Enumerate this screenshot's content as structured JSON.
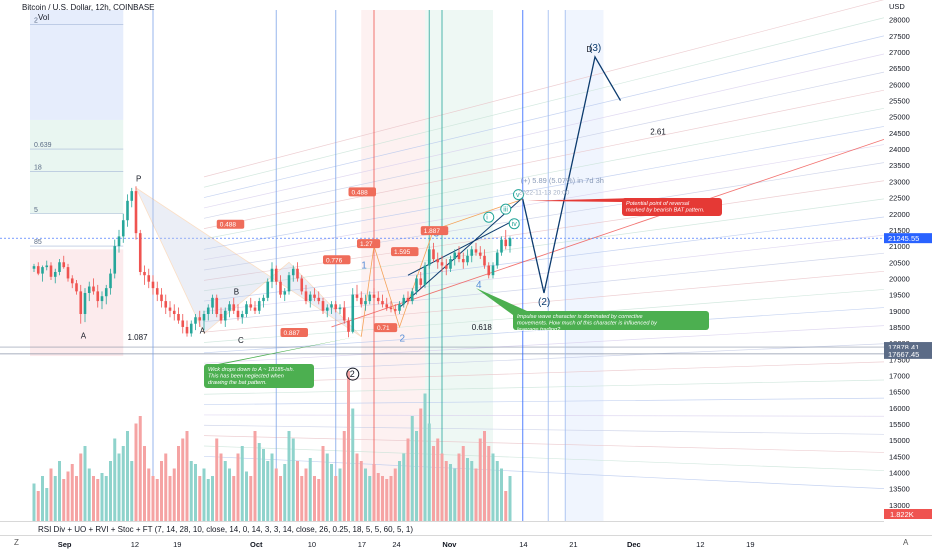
{
  "header": {
    "symbol_title": "Bitcoin / U.S. Dollar, 12h, COINBASE",
    "volume_label": "Vol",
    "indicator_label": "RSI Div + UO + RVI + Stoc + FT (7, 14, 28, 10, close, 14, 0, 14, 3, 3, 14, close, 26, 0.25, 18, 5, 5, 60, 5, 1)",
    "currency": "USD",
    "z_label": "Z",
    "auto_label": "A"
  },
  "colors": {
    "up": "#26a69a",
    "down": "#ef5350",
    "vol_up": "#8fd3cc",
    "vol_down": "#f5a3a3",
    "fib_blue": "#2962ff",
    "fib_red": "#f23645",
    "fib_green": "#089981",
    "wave_navy": "#0c3b6e",
    "last_price_bg": "#2962ff",
    "annotation_red": "#e53935",
    "annotation_green": "#4caf50"
  },
  "chart_data": {
    "type": "candlestick",
    "title": "Bitcoin / U.S. Dollar, 12h, COINBASE",
    "ylabel": "USD",
    "ylim": [
      12500,
      28300
    ],
    "y_ticks": [
      13000,
      13500,
      14000,
      14500,
      15000,
      15500,
      16000,
      16500,
      17000,
      17500,
      18000,
      18500,
      19000,
      19500,
      20000,
      20500,
      21000,
      21500,
      22000,
      22500,
      23000,
      23500,
      24000,
      24500,
      25000,
      25500,
      26000,
      26500,
      27000,
      27500,
      28000
    ],
    "x_ticks": [
      "Sep",
      "12",
      "19",
      "Oct",
      "10",
      "17",
      "24",
      "Nov",
      "14",
      "21",
      "Dec",
      "12",
      "19"
    ],
    "price_badges": [
      {
        "value": 21245.55,
        "text": "21245.55",
        "bg": "#2962ff"
      },
      {
        "value": 17878.41,
        "text": "17878.41",
        "bg": "#5b6b86"
      },
      {
        "value": 17667.45,
        "text": "17667.45",
        "bg": "#5b6b86"
      }
    ],
    "volume_badge": "1.822K",
    "ohlc_12h": [
      [
        20300,
        20450,
        20200,
        20380
      ],
      [
        20380,
        20500,
        20100,
        20150
      ],
      [
        20150,
        20400,
        19900,
        20350
      ],
      [
        20350,
        20550,
        20250,
        20400
      ],
      [
        20400,
        20500,
        19950,
        20050
      ],
      [
        20050,
        20300,
        19850,
        20200
      ],
      [
        20200,
        20600,
        20100,
        20500
      ],
      [
        20500,
        20700,
        20300,
        20350
      ],
      [
        20350,
        20450,
        19900,
        20000
      ],
      [
        20000,
        20100,
        19700,
        19850
      ],
      [
        19850,
        19950,
        19500,
        19600
      ],
      [
        19600,
        19800,
        18600,
        18900
      ],
      [
        18900,
        19700,
        18650,
        19550
      ],
      [
        19550,
        19900,
        19300,
        19750
      ],
      [
        19750,
        20000,
        19500,
        19600
      ],
      [
        19600,
        19800,
        19100,
        19300
      ],
      [
        19300,
        19600,
        19050,
        19450
      ],
      [
        19450,
        19800,
        19200,
        19700
      ],
      [
        19700,
        20300,
        19500,
        20150
      ],
      [
        20150,
        21200,
        20000,
        21000
      ],
      [
        21000,
        21500,
        20800,
        21300
      ],
      [
        21300,
        22000,
        21100,
        21800
      ],
      [
        21800,
        22600,
        21600,
        22400
      ],
      [
        22400,
        22800,
        22200,
        22700
      ],
      [
        22700,
        22850,
        21200,
        21400
      ],
      [
        21400,
        21500,
        20100,
        20200
      ],
      [
        20200,
        20400,
        19800,
        20100
      ],
      [
        20100,
        20300,
        19700,
        19900
      ],
      [
        19900,
        20100,
        19500,
        19700
      ],
      [
        19700,
        19900,
        19300,
        19500
      ],
      [
        19500,
        19700,
        19100,
        19300
      ],
      [
        19300,
        19500,
        18900,
        19100
      ],
      [
        19100,
        19300,
        18800,
        19000
      ],
      [
        19000,
        19200,
        18700,
        18900
      ],
      [
        18900,
        19100,
        18600,
        18700
      ],
      [
        18700,
        18900,
        18300,
        18500
      ],
      [
        18500,
        18700,
        18200,
        18300
      ],
      [
        18300,
        18700,
        18200,
        18600
      ],
      [
        18600,
        18900,
        18400,
        18800
      ],
      [
        18800,
        19000,
        18500,
        18700
      ],
      [
        18700,
        19000,
        18400,
        18900
      ],
      [
        18900,
        19200,
        18700,
        19100
      ],
      [
        19100,
        19500,
        18900,
        19400
      ],
      [
        19400,
        19500,
        18800,
        18900
      ],
      [
        18900,
        19100,
        18600,
        18700
      ],
      [
        18700,
        19100,
        18500,
        19000
      ],
      [
        19000,
        19300,
        18800,
        19200
      ],
      [
        19200,
        19400,
        18900,
        19000
      ],
      [
        19000,
        19200,
        18700,
        18800
      ],
      [
        18800,
        19000,
        18600,
        18900
      ],
      [
        18900,
        19300,
        18800,
        19200
      ],
      [
        19200,
        19400,
        19000,
        19100
      ],
      [
        19100,
        19300,
        18900,
        19000
      ],
      [
        19000,
        19400,
        18900,
        19300
      ],
      [
        19300,
        19500,
        19100,
        19400
      ],
      [
        19400,
        20000,
        19300,
        19900
      ],
      [
        19900,
        20500,
        19700,
        20300
      ],
      [
        20300,
        20400,
        19800,
        19900
      ],
      [
        19900,
        20100,
        19400,
        19500
      ],
      [
        19500,
        19700,
        19300,
        19600
      ],
      [
        19600,
        20200,
        19500,
        20100
      ],
      [
        20100,
        20400,
        19900,
        20300
      ],
      [
        20300,
        20500,
        19900,
        20000
      ],
      [
        20000,
        20100,
        19500,
        19600
      ],
      [
        19600,
        19800,
        19200,
        19300
      ],
      [
        19300,
        19600,
        19100,
        19500
      ],
      [
        19500,
        19700,
        19300,
        19400
      ],
      [
        19400,
        19600,
        19200,
        19300
      ],
      [
        19300,
        19400,
        18900,
        19000
      ],
      [
        19000,
        19200,
        18800,
        19100
      ],
      [
        19100,
        19300,
        18900,
        19200
      ],
      [
        19200,
        19300,
        18950,
        19050
      ],
      [
        19050,
        19200,
        18900,
        19100
      ],
      [
        19100,
        19300,
        18600,
        18700
      ],
      [
        18700,
        18800,
        18180,
        18350
      ],
      [
        18350,
        19700,
        18300,
        19500
      ],
      [
        19500,
        19800,
        19300,
        19400
      ],
      [
        19400,
        19600,
        19100,
        19200
      ],
      [
        19200,
        19500,
        19000,
        19300
      ],
      [
        19300,
        19600,
        19200,
        19500
      ],
      [
        19500,
        19700,
        19300,
        19400
      ],
      [
        19400,
        19600,
        19200,
        19300
      ],
      [
        19300,
        19500,
        19100,
        19200
      ],
      [
        19200,
        19400,
        19000,
        19100
      ],
      [
        19100,
        19300,
        18950,
        19050
      ],
      [
        19050,
        19200,
        18900,
        19000
      ],
      [
        19000,
        19300,
        18900,
        19200
      ],
      [
        19200,
        19500,
        19100,
        19400
      ],
      [
        19400,
        19600,
        19200,
        19300
      ],
      [
        19300,
        19700,
        19200,
        19600
      ],
      [
        19600,
        20100,
        19500,
        20000
      ],
      [
        20000,
        20200,
        19700,
        19800
      ],
      [
        19800,
        20500,
        19700,
        20400
      ],
      [
        20400,
        21000,
        20300,
        20900
      ],
      [
        20900,
        21100,
        20500,
        20600
      ],
      [
        20600,
        20800,
        20300,
        20500
      ],
      [
        20500,
        20700,
        20200,
        20400
      ],
      [
        20400,
        20600,
        20100,
        20300
      ],
      [
        20300,
        20700,
        20200,
        20600
      ],
      [
        20600,
        20900,
        20400,
        20800
      ],
      [
        20800,
        21000,
        20500,
        20600
      ],
      [
        20600,
        20800,
        20300,
        20500
      ],
      [
        20500,
        20900,
        20400,
        20700
      ],
      [
        20700,
        21000,
        20500,
        20900
      ],
      [
        20900,
        21100,
        20700,
        20800
      ],
      [
        20800,
        21000,
        20600,
        20700
      ],
      [
        20700,
        20900,
        20300,
        20400
      ],
      [
        20400,
        20500,
        20000,
        20100
      ],
      [
        20100,
        20500,
        20000,
        20400
      ],
      [
        20400,
        20900,
        20300,
        20800
      ],
      [
        20800,
        21300,
        20700,
        21200
      ],
      [
        21200,
        21500,
        20900,
        21000
      ],
      [
        21000,
        21300,
        20800,
        21245.55
      ]
    ],
    "volumes_rel": [
      0.25,
      0.2,
      0.3,
      0.22,
      0.35,
      0.3,
      0.4,
      0.28,
      0.33,
      0.38,
      0.3,
      0.45,
      0.5,
      0.35,
      0.3,
      0.28,
      0.32,
      0.3,
      0.4,
      0.55,
      0.45,
      0.5,
      0.6,
      0.4,
      0.65,
      0.7,
      0.5,
      0.35,
      0.3,
      0.28,
      0.4,
      0.45,
      0.3,
      0.35,
      0.5,
      0.55,
      0.6,
      0.4,
      0.38,
      0.3,
      0.35,
      0.28,
      0.3,
      0.55,
      0.45,
      0.4,
      0.35,
      0.3,
      0.45,
      0.5,
      0.33,
      0.3,
      0.6,
      0.52,
      0.48,
      0.4,
      0.45,
      0.35,
      0.3,
      0.38,
      0.6,
      0.55,
      0.4,
      0.3,
      0.35,
      0.42,
      0.3,
      0.28,
      0.5,
      0.45,
      0.38,
      0.3,
      0.35,
      0.6,
      1.0,
      0.75,
      0.45,
      0.4,
      0.35,
      0.3,
      0.38,
      0.32,
      0.3,
      0.28,
      0.3,
      0.35,
      0.4,
      0.45,
      0.55,
      0.7,
      0.6,
      0.75,
      0.85,
      0.65,
      0.5,
      0.55,
      0.45,
      0.4,
      0.38,
      0.35,
      0.45,
      0.5,
      0.42,
      0.4,
      0.35,
      0.55,
      0.6,
      0.5,
      0.45,
      0.4,
      0.35,
      0.2
    ],
    "wave_projection": [
      {
        "label": "",
        "t": 115,
        "price": 22450
      },
      {
        "label": "(2)",
        "t": 120,
        "price": 19550
      },
      {
        "label": "(3)",
        "t": 132,
        "price": 26850
      },
      {
        "label": "",
        "t": 138,
        "price": 25500
      }
    ],
    "vertical_lines_t": [
      28,
      57,
      71,
      80,
      93,
      96,
      115,
      121,
      125
    ],
    "fib_levels": [
      {
        "label": "0.639",
        "price": 24000
      },
      {
        "label": "18",
        "price": 23300
      },
      {
        "label": "5",
        "price": 22000
      },
      {
        "label": "85",
        "price": 21000
      },
      {
        "label": "2",
        "price": 27850
      }
    ],
    "pattern_labels": [
      {
        "text": "P",
        "t": 24,
        "price": 23000,
        "style": "dark"
      },
      {
        "text": "A",
        "t": 11,
        "price": 18150,
        "style": "dark"
      },
      {
        "text": "A",
        "t": 39,
        "price": 18300,
        "style": "dark"
      },
      {
        "text": "B",
        "t": 47,
        "price": 19500,
        "style": "dark"
      },
      {
        "text": "C",
        "t": 48,
        "price": 18000,
        "style": "dark"
      },
      {
        "text": "1.087",
        "t": 22,
        "price": 18100,
        "style": "dark"
      },
      {
        "text": "2.61",
        "t": 145,
        "price": 24450,
        "style": "dark"
      },
      {
        "text": "0.618",
        "t": 103,
        "price": 18400,
        "style": "dark"
      },
      {
        "text": "1",
        "t": 77,
        "price": 20300,
        "style": "blue"
      },
      {
        "text": "2",
        "t": 86,
        "price": 18050,
        "style": "blue"
      },
      {
        "text": "3",
        "t": 94,
        "price": 21300,
        "style": "blue"
      },
      {
        "text": "4",
        "t": 104,
        "price": 19700,
        "style": "blue"
      },
      {
        "text": "D",
        "t": 130,
        "price": 27000,
        "style": "dark"
      },
      {
        "text": "2",
        "t": 75,
        "price": 16950,
        "style": "circle"
      },
      {
        "text": "i",
        "t": 107,
        "price": 21800,
        "style": "circle-green"
      },
      {
        "text": "iii",
        "t": 111,
        "price": 22050,
        "style": "circle-green"
      },
      {
        "text": "iv",
        "t": 113,
        "price": 21600,
        "style": "circle-green"
      },
      {
        "text": "v",
        "t": 114,
        "price": 22500,
        "style": "circle-green"
      }
    ],
    "orange_tags": [
      {
        "text": "0.488",
        "t": 43,
        "price": 21600
      },
      {
        "text": "0.488",
        "t": 74,
        "price": 22600
      },
      {
        "text": "0.776",
        "t": 68,
        "price": 20500
      },
      {
        "text": "1.27",
        "t": 76,
        "price": 21000
      },
      {
        "text": "1.595",
        "t": 84,
        "price": 20750
      },
      {
        "text": "0.887",
        "t": 58,
        "price": 18250
      },
      {
        "text": "0.71",
        "t": 80,
        "price": 18400
      },
      {
        "text": "1.887",
        "t": 91,
        "price": 21400
      }
    ],
    "projection_text": "(+) 5.89 (5.07%) in 7d 3h",
    "projection_subtext": "2022-11-13 20:00",
    "annotations": [
      {
        "text": "Potential point of reversal marked by bearish BAT pattern.",
        "color": "red"
      },
      {
        "text": "Impulse wave character is dominated by corrective movements. How much of this character is influenced by leverage trading?",
        "color": "green"
      },
      {
        "text": "Wick drops down to A ~ 18185-ish. This has been neglected when drawing the bat pattern.",
        "color": "green"
      }
    ]
  }
}
